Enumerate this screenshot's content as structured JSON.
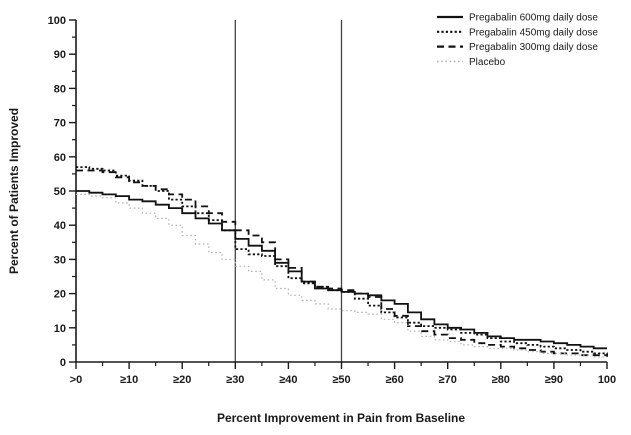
{
  "figure": {
    "kind": "responder-curve-figure"
  },
  "chart_data": {
    "type": "line",
    "subtype": "step-after-staircase",
    "title": "",
    "xlabel": "Percent Improvement in Pain from Baseline",
    "ylabel": "Percent of Patients Improved",
    "xlim": [
      0,
      100
    ],
    "ylim": [
      0,
      100
    ],
    "grid": false,
    "legend_position": "top-right",
    "x_major_ticks": [
      0,
      10,
      20,
      30,
      40,
      50,
      60,
      70,
      80,
      90,
      100
    ],
    "x_tick_labels": [
      ">0",
      "≥10",
      "≥20",
      "≥30",
      "≥40",
      "≥50",
      "≥60",
      "≥70",
      "≥80",
      "≥90",
      "100"
    ],
    "y_major_ticks": [
      0,
      10,
      20,
      30,
      40,
      50,
      60,
      70,
      80,
      90,
      100
    ],
    "y_tick_labels": [
      "0",
      "10",
      "20",
      "30",
      "40",
      "50",
      "60",
      "70",
      "80",
      "90",
      "100"
    ],
    "x_minor_tick_step": 5,
    "y_minor_tick_step": 5,
    "reference_lines_x": [
      30,
      50
    ],
    "reference_line_color": "#444444",
    "axis_color": "#1a1a1a",
    "x": [
      0,
      2.5,
      5,
      7.5,
      10,
      12.5,
      15,
      17.5,
      20,
      22.5,
      25,
      27.5,
      30,
      32.5,
      35,
      37.5,
      40,
      42.5,
      45,
      47.5,
      50,
      52.5,
      55,
      57.5,
      60,
      62.5,
      65,
      67.5,
      70,
      72.5,
      75,
      77.5,
      80,
      82.5,
      85,
      87.5,
      90,
      92.5,
      95,
      97.5,
      100
    ],
    "series": [
      {
        "name": "Pregabalin 600mg daily dose",
        "style": "solid",
        "color": "#111111",
        "width": 1.8,
        "values": [
          50,
          49.5,
          49,
          48.5,
          47.5,
          47,
          46,
          45,
          43.5,
          42,
          40.5,
          38.5,
          36,
          34,
          32.5,
          29,
          26.5,
          23.5,
          21.5,
          21,
          20.5,
          20,
          19.5,
          18,
          17,
          14.5,
          12.5,
          11,
          10,
          9.5,
          8.5,
          7.5,
          7,
          6.5,
          6.5,
          6,
          5.5,
          5,
          4.5,
          4,
          4
        ]
      },
      {
        "name": "Pregabalin 450mg daily dose",
        "style": "dotted",
        "color": "#111111",
        "width": 1.8,
        "values": [
          57,
          56.5,
          56,
          54.5,
          53,
          51.5,
          50,
          47.5,
          45.5,
          43.5,
          41.5,
          38.5,
          33,
          31.5,
          31,
          28,
          24.5,
          23,
          22,
          21,
          20.5,
          18.5,
          16.5,
          14.5,
          13,
          11.5,
          10.5,
          10,
          9.5,
          8.5,
          8,
          7,
          6,
          5.5,
          5,
          4.5,
          4,
          3.5,
          3,
          2.5,
          2
        ]
      },
      {
        "name": "Pregabalin 300mg daily dose",
        "style": "dashed",
        "color": "#111111",
        "width": 1.8,
        "values": [
          56,
          56,
          55.5,
          54,
          52.5,
          51.5,
          50.5,
          49,
          47.5,
          45.5,
          43.5,
          41,
          38.5,
          37,
          35,
          30,
          27.5,
          23.5,
          22,
          21.5,
          21,
          20,
          19,
          15.5,
          13.5,
          10.5,
          9,
          8,
          7,
          6.5,
          5.5,
          5,
          4.5,
          4,
          3.5,
          3,
          2.5,
          2.5,
          2,
          2,
          1.5
        ]
      },
      {
        "name": "Placebo",
        "style": "dotted-light",
        "color": "#b3b3b3",
        "width": 1.2,
        "values": [
          49,
          48.5,
          48,
          46.5,
          45,
          43.5,
          42,
          40,
          37,
          34.5,
          32,
          30,
          28,
          26.5,
          24,
          21.5,
          19.5,
          18,
          17,
          15.5,
          15,
          14.5,
          14,
          12.5,
          11.5,
          9,
          7.5,
          6.5,
          6,
          5,
          4.5,
          4,
          4,
          3.5,
          3,
          2.5,
          2.5,
          2,
          2,
          1.5,
          1.5
        ]
      }
    ]
  }
}
